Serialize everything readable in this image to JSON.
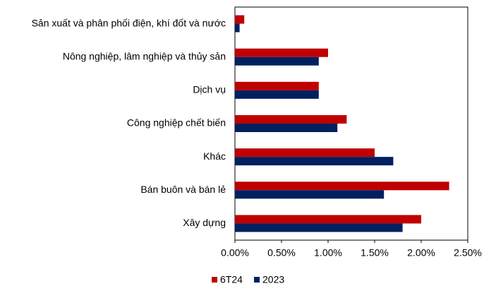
{
  "chart_data": {
    "type": "bar",
    "orientation": "horizontal",
    "categories": [
      "Sản xuất và phân phối điện, khí đốt và nước",
      "Nông nghiệp, lâm nghiệp và thủy sản",
      "Dịch vụ",
      "Công nghiệp chết biến",
      "Khác",
      "Bán buôn và bán lẻ",
      "Xây dựng"
    ],
    "series": [
      {
        "name": "6T24",
        "color": "#c00000",
        "values": [
          0.1,
          1.0,
          0.9,
          1.2,
          1.5,
          2.3,
          2.0
        ]
      },
      {
        "name": "2023",
        "color": "#002060",
        "values": [
          0.05,
          0.9,
          0.9,
          1.1,
          1.7,
          1.6,
          1.8
        ]
      }
    ],
    "xlim": [
      0,
      2.5
    ],
    "xticks": [
      {
        "value": 0,
        "label": "0.00%"
      },
      {
        "value": 0.5,
        "label": "0.50%"
      },
      {
        "value": 1.0,
        "label": "1.00%"
      },
      {
        "value": 1.5,
        "label": "1.50%"
      },
      {
        "value": 2.0,
        "label": "2.00%"
      },
      {
        "value": 2.5,
        "label": "2.50%"
      }
    ],
    "grid": false,
    "legend": "bottom"
  }
}
